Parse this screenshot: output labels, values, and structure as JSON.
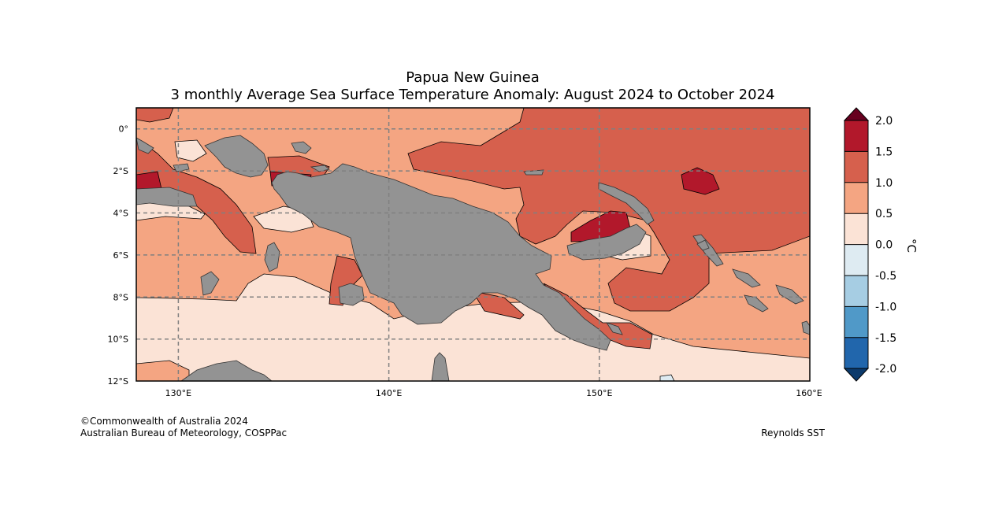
{
  "title": "Papua New Guinea",
  "subtitle": "3 monthly Average Sea Surface Temperature Anomaly: August 2024 to October 2024",
  "credits": {
    "copyright": "©Commonwealth of Australia 2024",
    "agency": "Australian Bureau of Meteorology, COSPPac",
    "source": "Reynolds SST"
  },
  "map": {
    "lon_range": [
      128,
      160
    ],
    "lat_range": [
      -12,
      1
    ],
    "lon_ticks": [
      "130°E",
      "140°E",
      "150°E",
      "160°E"
    ],
    "lat_ticks": [
      "0°",
      "2°S",
      "4°S",
      "6°S",
      "8°S",
      "10°S",
      "12°S"
    ]
  },
  "colorbar": {
    "unit": "°C",
    "labels": [
      "2.0",
      "1.5",
      "1.0",
      "0.5",
      "0.0",
      "-0.5",
      "-1.0",
      "-1.5",
      "-2.0"
    ],
    "colors": {
      "over": "#67001f",
      "c_1_5_2_0": "#b2182b",
      "c_1_0_1_5": "#d6604d",
      "c_0_5_1_0": "#f4a582",
      "c_0_0_0_5": "#fbe3d6",
      "c_m0_5_0_0": "#deebf2",
      "c_m1_0_m0_5": "#a6cde3",
      "c_m1_5_m1_0": "#5099c8",
      "c_m2_0_m1_5": "#2166ac",
      "under": "#0b3a6c"
    }
  },
  "colors": {
    "land": "#939393",
    "grid": "#808080"
  }
}
